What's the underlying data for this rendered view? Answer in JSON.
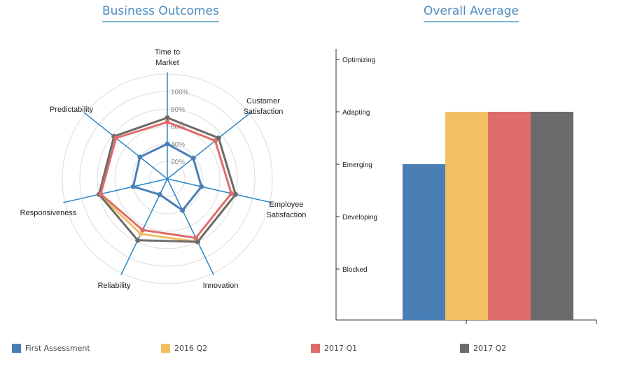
{
  "titles": {
    "left": "Business Outcomes",
    "right": "Overall Average"
  },
  "chart_data": [
    {
      "type": "radar",
      "title": "Business Outcomes",
      "axes": [
        "Time to Market",
        "Customer Satisfaction",
        "Employee Satisfaction",
        "Innovation",
        "Reliability",
        "Responsiveness",
        "Predictability"
      ],
      "radial_ticks": [
        "20%",
        "40%",
        "60%",
        "80%",
        "100%"
      ],
      "range": [
        0,
        100
      ],
      "series": [
        {
          "name": "First Assessment",
          "color": "#4a7fb5",
          "values": [
            40,
            38,
            40,
            40,
            20,
            40,
            40
          ]
        },
        {
          "name": "2016 Q2",
          "color": "#f2bf63",
          "values": [
            70,
            75,
            80,
            80,
            70,
            80,
            78
          ]
        },
        {
          "name": "2017 Q1",
          "color": "#e06b6b",
          "values": [
            65,
            70,
            75,
            75,
            65,
            78,
            75
          ]
        },
        {
          "name": "2017 Q2",
          "color": "#6b6b6b",
          "values": [
            70,
            75,
            80,
            80,
            78,
            80,
            78
          ]
        }
      ]
    },
    {
      "type": "bar",
      "title": "Overall Average",
      "y_categories": [
        "Blocked",
        "Developing",
        "Emerging",
        "Adapting",
        "Optimizing"
      ],
      "series": [
        {
          "name": "First Assessment",
          "color": "#4a7fb5",
          "value": "Emerging"
        },
        {
          "name": "2016 Q2",
          "color": "#f2bf63",
          "value": "Adapting"
        },
        {
          "name": "2017 Q1",
          "color": "#e06b6b",
          "value": "Adapting"
        },
        {
          "name": "2017 Q2",
          "color": "#6b6b6b",
          "value": "Adapting"
        }
      ]
    }
  ],
  "legend": [
    {
      "label": "First Assessment",
      "color": "#4a7fb5"
    },
    {
      "label": "2016 Q2",
      "color": "#f2bf63"
    },
    {
      "label": "2017 Q1",
      "color": "#e06b6b"
    },
    {
      "label": "2017 Q2",
      "color": "#6b6b6b"
    }
  ]
}
